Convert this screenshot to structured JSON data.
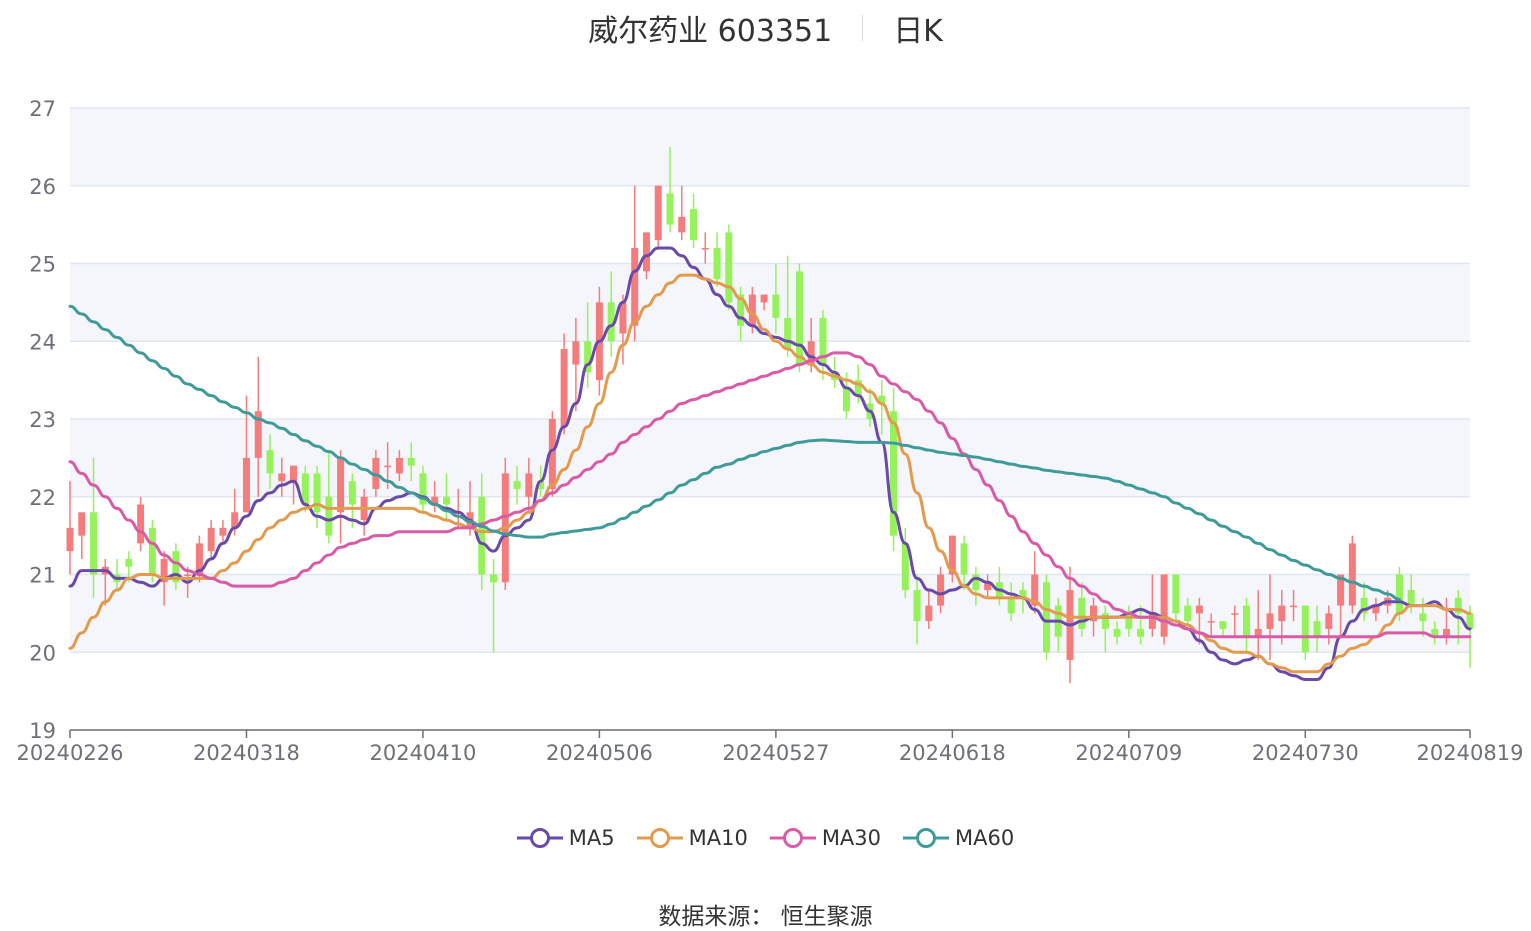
{
  "title": {
    "name": "威尔药业 603351",
    "period": "日K"
  },
  "source_text": "数据来源：  恒生聚源",
  "colors": {
    "up": "#f47c7c",
    "down": "#95f25b",
    "ma5": "#6a4aa8",
    "ma10": "#e39a4d",
    "ma30": "#d95ba8",
    "ma60": "#3f9a9a",
    "band": "#f4f6fb",
    "grid": "#e0e6f1",
    "axis": "#6e7079"
  },
  "chart_data": {
    "type": "candlestick",
    "title": "威尔药业 603351",
    "subtitle": "日K",
    "ylim": [
      19,
      27
    ],
    "yticks": [
      19,
      20,
      21,
      22,
      23,
      24,
      25,
      26,
      27
    ],
    "xtick_labels": [
      "20240226",
      "20240318",
      "20240410",
      "20240506",
      "20240527",
      "20240618",
      "20240709",
      "20240730",
      "20240819"
    ],
    "xtick_indices": [
      0,
      15,
      30,
      45,
      60,
      75,
      90,
      105,
      119
    ],
    "legend": [
      "MA5",
      "MA10",
      "MA30",
      "MA60"
    ],
    "legend_position": "bottom",
    "candles_ohlc": [
      [
        21.3,
        21.6,
        21.0,
        22.2
      ],
      [
        21.5,
        21.8,
        21.2,
        21.8
      ],
      [
        21.8,
        21.0,
        20.7,
        22.5
      ],
      [
        21.0,
        21.1,
        20.6,
        21.2
      ],
      [
        21.0,
        20.9,
        20.8,
        21.2
      ],
      [
        21.2,
        21.1,
        20.9,
        21.3
      ],
      [
        21.4,
        21.9,
        21.3,
        22.0
      ],
      [
        21.6,
        21.0,
        20.9,
        21.7
      ],
      [
        20.9,
        21.2,
        20.6,
        21.3
      ],
      [
        21.3,
        20.9,
        20.8,
        21.4
      ],
      [
        21.0,
        21.0,
        20.7,
        21.1
      ],
      [
        21.0,
        21.4,
        20.9,
        21.5
      ],
      [
        21.3,
        21.6,
        21.2,
        21.7
      ],
      [
        21.5,
        21.6,
        21.4,
        21.7
      ],
      [
        21.6,
        21.8,
        21.5,
        22.1
      ],
      [
        21.8,
        22.5,
        21.8,
        23.3
      ],
      [
        22.5,
        23.1,
        22.0,
        23.8
      ],
      [
        22.6,
        22.3,
        22.1,
        22.8
      ],
      [
        22.2,
        22.3,
        22.0,
        22.5
      ],
      [
        22.2,
        22.4,
        21.9,
        22.4
      ],
      [
        22.3,
        21.9,
        21.8,
        22.4
      ],
      [
        22.3,
        21.8,
        21.6,
        22.4
      ],
      [
        22.0,
        21.5,
        21.4,
        22.6
      ],
      [
        21.8,
        22.5,
        21.4,
        22.6
      ],
      [
        22.2,
        21.9,
        21.6,
        22.3
      ],
      [
        21.7,
        22.0,
        21.5,
        22.1
      ],
      [
        22.1,
        22.5,
        22.0,
        22.6
      ],
      [
        22.4,
        22.4,
        22.1,
        22.7
      ],
      [
        22.3,
        22.5,
        22.2,
        22.6
      ],
      [
        22.5,
        22.4,
        22.2,
        22.7
      ],
      [
        22.3,
        21.9,
        21.8,
        22.4
      ],
      [
        21.9,
        22.0,
        21.8,
        22.2
      ],
      [
        22.0,
        21.9,
        21.7,
        22.3
      ],
      [
        21.8,
        21.8,
        21.6,
        22.1
      ],
      [
        21.6,
        21.8,
        21.5,
        22.2
      ],
      [
        22.0,
        21.0,
        20.8,
        22.3
      ],
      [
        21.0,
        20.9,
        20.0,
        21.2
      ],
      [
        20.9,
        22.3,
        20.8,
        22.5
      ],
      [
        22.2,
        22.1,
        21.9,
        22.4
      ],
      [
        22.0,
        22.3,
        21.8,
        22.5
      ],
      [
        22.2,
        22.1,
        22.0,
        22.4
      ],
      [
        22.1,
        23.0,
        22.0,
        23.1
      ],
      [
        22.9,
        23.9,
        22.8,
        24.1
      ],
      [
        23.7,
        24.0,
        23.1,
        24.3
      ],
      [
        24.0,
        23.6,
        23.4,
        24.5
      ],
      [
        23.5,
        24.5,
        23.3,
        24.7
      ],
      [
        24.5,
        24.0,
        23.8,
        24.9
      ],
      [
        24.1,
        24.5,
        23.7,
        24.6
      ],
      [
        24.2,
        25.2,
        24.0,
        26.0
      ],
      [
        24.9,
        25.4,
        24.8,
        25.4
      ],
      [
        25.3,
        26.0,
        25.2,
        26.0
      ],
      [
        25.9,
        25.5,
        25.4,
        26.5
      ],
      [
        25.4,
        25.6,
        25.3,
        26.0
      ],
      [
        25.7,
        25.3,
        25.2,
        25.9
      ],
      [
        25.2,
        25.2,
        25.0,
        25.4
      ],
      [
        25.2,
        24.8,
        24.7,
        25.4
      ],
      [
        25.4,
        24.5,
        24.4,
        25.5
      ],
      [
        24.6,
        24.2,
        24.0,
        24.7
      ],
      [
        24.2,
        24.6,
        24.1,
        24.7
      ],
      [
        24.5,
        24.6,
        24.4,
        24.6
      ],
      [
        24.6,
        24.3,
        24.1,
        25.0
      ],
      [
        24.3,
        23.9,
        23.8,
        25.1
      ],
      [
        24.9,
        23.7,
        23.6,
        25.0
      ],
      [
        23.7,
        24.0,
        23.6,
        24.3
      ],
      [
        24.3,
        23.7,
        23.5,
        24.4
      ],
      [
        23.6,
        23.5,
        23.4,
        23.8
      ],
      [
        23.4,
        23.1,
        23.0,
        23.6
      ],
      [
        23.5,
        23.3,
        23.2,
        23.7
      ],
      [
        23.2,
        23.0,
        22.9,
        23.4
      ],
      [
        23.3,
        23.2,
        22.8,
        23.5
      ],
      [
        23.1,
        21.5,
        21.3,
        23.4
      ],
      [
        21.4,
        20.8,
        20.7,
        21.6
      ],
      [
        20.8,
        20.4,
        20.1,
        21.0
      ],
      [
        20.4,
        20.6,
        20.3,
        20.8
      ],
      [
        20.6,
        21.0,
        20.5,
        21.1
      ],
      [
        21.0,
        21.5,
        20.9,
        21.5
      ],
      [
        21.4,
        21.0,
        20.8,
        21.5
      ],
      [
        21.0,
        20.8,
        20.6,
        21.1
      ],
      [
        20.8,
        20.9,
        20.7,
        21.0
      ],
      [
        20.9,
        20.7,
        20.6,
        21.1
      ],
      [
        20.7,
        20.5,
        20.4,
        20.9
      ],
      [
        20.8,
        20.7,
        20.5,
        20.9
      ],
      [
        20.6,
        21.0,
        20.5,
        21.3
      ],
      [
        20.9,
        20.0,
        19.9,
        21.0
      ],
      [
        20.6,
        20.2,
        20.0,
        20.7
      ],
      [
        19.9,
        20.8,
        19.6,
        21.1
      ],
      [
        20.7,
        20.3,
        20.2,
        20.9
      ],
      [
        20.4,
        20.6,
        20.2,
        20.7
      ],
      [
        20.5,
        20.3,
        20.0,
        20.6
      ],
      [
        20.3,
        20.2,
        20.1,
        20.4
      ],
      [
        20.5,
        20.3,
        20.2,
        20.6
      ],
      [
        20.3,
        20.2,
        20.1,
        20.6
      ],
      [
        20.3,
        20.5,
        20.2,
        21.0
      ],
      [
        20.2,
        21.0,
        20.1,
        21.0
      ],
      [
        21.0,
        20.5,
        20.4,
        21.0
      ],
      [
        20.6,
        20.4,
        20.3,
        20.7
      ],
      [
        20.5,
        20.6,
        20.1,
        20.7
      ],
      [
        20.4,
        20.4,
        20.2,
        20.5
      ],
      [
        20.4,
        20.3,
        20.2,
        20.4
      ],
      [
        20.5,
        20.5,
        20.2,
        20.6
      ],
      [
        20.6,
        20.2,
        20.0,
        20.7
      ],
      [
        20.2,
        20.3,
        19.9,
        20.8
      ],
      [
        20.3,
        20.5,
        19.9,
        21.0
      ],
      [
        20.4,
        20.6,
        20.1,
        20.8
      ],
      [
        20.6,
        20.6,
        20.4,
        20.8
      ],
      [
        20.6,
        20.0,
        19.9,
        20.6
      ],
      [
        20.4,
        20.2,
        20.0,
        20.6
      ],
      [
        20.3,
        20.5,
        20.1,
        20.6
      ],
      [
        20.6,
        21.0,
        20.2,
        21.0
      ],
      [
        20.6,
        21.4,
        20.5,
        21.5
      ],
      [
        20.7,
        20.5,
        20.4,
        20.9
      ],
      [
        20.5,
        20.6,
        20.4,
        20.7
      ],
      [
        20.6,
        20.7,
        20.5,
        20.8
      ],
      [
        21.0,
        20.5,
        20.4,
        21.1
      ],
      [
        20.8,
        20.6,
        20.5,
        21.0
      ],
      [
        20.5,
        20.4,
        20.2,
        20.7
      ],
      [
        20.3,
        20.2,
        20.1,
        20.4
      ],
      [
        20.2,
        20.3,
        20.1,
        20.7
      ],
      [
        20.7,
        20.5,
        20.1,
        20.8
      ],
      [
        20.5,
        20.3,
        19.8,
        20.6
      ]
    ],
    "series": [
      {
        "name": "MA5",
        "values": [
          20.85,
          21.05,
          21.05,
          21.05,
          20.95,
          20.95,
          20.9,
          20.85,
          20.95,
          21.0,
          20.9,
          21.05,
          21.2,
          21.4,
          21.6,
          21.75,
          21.95,
          22.05,
          22.15,
          22.2,
          21.9,
          21.75,
          21.7,
          21.75,
          21.7,
          21.65,
          21.85,
          21.95,
          22.0,
          22.05,
          22.0,
          21.9,
          21.85,
          21.8,
          21.7,
          21.4,
          21.3,
          21.5,
          21.6,
          21.7,
          22.2,
          22.6,
          22.9,
          23.2,
          23.7,
          24.0,
          24.2,
          24.5,
          24.9,
          25.1,
          25.2,
          25.2,
          25.1,
          24.95,
          24.8,
          24.6,
          24.45,
          24.3,
          24.2,
          24.1,
          24.05,
          24.0,
          23.95,
          23.8,
          23.7,
          23.6,
          23.4,
          23.3,
          23.1,
          22.7,
          21.8,
          21.4,
          20.95,
          20.8,
          20.75,
          20.8,
          20.85,
          20.95,
          20.9,
          20.8,
          20.75,
          20.7,
          20.55,
          20.4,
          20.4,
          20.35,
          20.4,
          20.45,
          20.45,
          20.45,
          20.5,
          20.55,
          20.5,
          20.45,
          20.4,
          20.3,
          20.15,
          20.0,
          19.9,
          19.85,
          19.9,
          19.95,
          19.85,
          19.75,
          19.7,
          19.65,
          19.65,
          19.8,
          20.2,
          20.4,
          20.55,
          20.6,
          20.65,
          20.65,
          20.6,
          20.6,
          20.65,
          20.55,
          20.45,
          20.3
        ]
      },
      {
        "name": "MA10",
        "values": [
          20.05,
          20.25,
          20.45,
          20.65,
          20.8,
          20.95,
          21.0,
          21.0,
          20.95,
          20.95,
          20.95,
          20.95,
          20.95,
          21.05,
          21.15,
          21.3,
          21.45,
          21.6,
          21.7,
          21.8,
          21.85,
          21.9,
          21.85,
          21.85,
          21.85,
          21.85,
          21.85,
          21.85,
          21.85,
          21.85,
          21.8,
          21.75,
          21.7,
          21.65,
          21.6,
          21.55,
          21.55,
          21.6,
          21.7,
          21.8,
          21.95,
          22.15,
          22.35,
          22.6,
          22.9,
          23.2,
          23.6,
          23.95,
          24.25,
          24.45,
          24.6,
          24.75,
          24.85,
          24.85,
          24.8,
          24.75,
          24.7,
          24.55,
          24.35,
          24.15,
          24.0,
          23.9,
          23.8,
          23.7,
          23.6,
          23.55,
          23.5,
          23.45,
          23.35,
          23.2,
          22.95,
          22.55,
          22.05,
          21.6,
          21.3,
          21.05,
          20.85,
          20.75,
          20.7,
          20.7,
          20.7,
          20.7,
          20.65,
          20.55,
          20.5,
          20.45,
          20.45,
          20.45,
          20.45,
          20.45,
          20.45,
          20.45,
          20.45,
          20.45,
          20.4,
          20.35,
          20.25,
          20.15,
          20.05,
          20.0,
          20.0,
          19.95,
          19.85,
          19.8,
          19.75,
          19.75,
          19.75,
          19.85,
          19.95,
          20.05,
          20.1,
          20.2,
          20.35,
          20.5,
          20.6,
          20.6,
          20.6,
          20.55,
          20.55,
          20.5
        ]
      },
      {
        "name": "MA30",
        "values": [
          22.45,
          22.3,
          22.15,
          22.0,
          21.85,
          21.7,
          21.55,
          21.4,
          21.25,
          21.15,
          21.05,
          21.0,
          20.95,
          20.9,
          20.85,
          20.85,
          20.85,
          20.85,
          20.9,
          20.95,
          21.05,
          21.15,
          21.25,
          21.35,
          21.4,
          21.45,
          21.5,
          21.5,
          21.55,
          21.55,
          21.55,
          21.55,
          21.55,
          21.6,
          21.6,
          21.65,
          21.7,
          21.75,
          21.8,
          21.85,
          21.95,
          22.05,
          22.15,
          22.25,
          22.35,
          22.45,
          22.55,
          22.7,
          22.8,
          22.9,
          23.0,
          23.1,
          23.2,
          23.25,
          23.3,
          23.35,
          23.4,
          23.45,
          23.5,
          23.55,
          23.6,
          23.65,
          23.7,
          23.75,
          23.8,
          23.85,
          23.85,
          23.8,
          23.7,
          23.55,
          23.45,
          23.35,
          23.25,
          23.1,
          22.95,
          22.75,
          22.55,
          22.35,
          22.15,
          21.95,
          21.75,
          21.55,
          21.4,
          21.25,
          21.1,
          20.95,
          20.85,
          20.75,
          20.65,
          20.55,
          20.5,
          20.45,
          20.45,
          20.4,
          20.35,
          20.3,
          20.25,
          20.2,
          20.2,
          20.2,
          20.2,
          20.2,
          20.2,
          20.2,
          20.2,
          20.2,
          20.2,
          20.2,
          20.2,
          20.2,
          20.2,
          20.2,
          20.25,
          20.25,
          20.25,
          20.25,
          20.2,
          20.2,
          20.2,
          20.2
        ]
      },
      {
        "name": "MA60",
        "values": [
          24.45,
          24.35,
          24.25,
          24.15,
          24.05,
          23.95,
          23.85,
          23.75,
          23.65,
          23.55,
          23.45,
          23.38,
          23.3,
          23.22,
          23.15,
          23.08,
          23.0,
          22.95,
          22.88,
          22.8,
          22.72,
          22.65,
          22.58,
          22.5,
          22.42,
          22.35,
          22.28,
          22.2,
          22.12,
          22.05,
          21.98,
          21.9,
          21.82,
          21.75,
          21.68,
          21.62,
          21.56,
          21.52,
          21.5,
          21.48,
          21.48,
          21.52,
          21.54,
          21.56,
          21.58,
          21.6,
          21.65,
          21.72,
          21.8,
          21.88,
          21.96,
          22.05,
          22.15,
          22.22,
          22.3,
          22.38,
          22.42,
          22.48,
          22.53,
          22.58,
          22.62,
          22.66,
          22.7,
          22.72,
          22.73,
          22.72,
          22.71,
          22.7,
          22.7,
          22.7,
          22.69,
          22.66,
          22.63,
          22.6,
          22.57,
          22.55,
          22.53,
          22.51,
          22.48,
          22.45,
          22.42,
          22.39,
          22.37,
          22.34,
          22.32,
          22.3,
          22.28,
          22.26,
          22.24,
          22.2,
          22.15,
          22.1,
          22.05,
          22.0,
          21.92,
          21.85,
          21.78,
          21.7,
          21.62,
          21.55,
          21.48,
          21.4,
          21.32,
          21.25,
          21.18,
          21.12,
          21.06,
          21.0,
          20.95,
          20.9,
          20.85,
          20.8,
          20.75,
          20.68
        ]
      }
    ]
  }
}
